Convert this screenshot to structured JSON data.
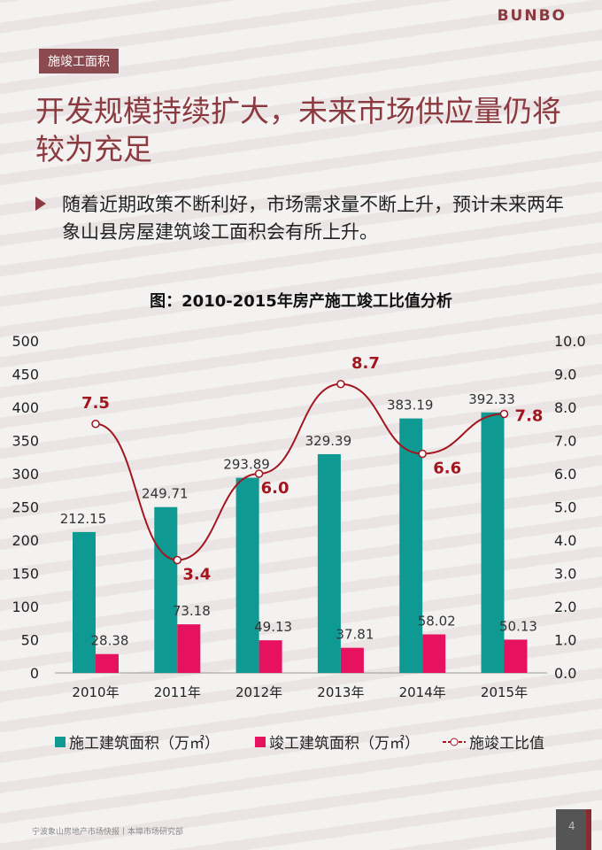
{
  "header": {
    "logo": "BUNBO",
    "tag": "施竣工面积"
  },
  "title": "开发规模持续扩大，未来市场供应量仍将较为充足",
  "bullet": "随着近期政策不断利好，市场需求量不断上升，预计未来两年象山县房屋建筑竣工面积会有所上升。",
  "footer": {
    "source": "宁波象山房地产市场快报丨本埠市场研究部",
    "page": "4"
  },
  "chart_data": {
    "type": "bar+line",
    "title": "图：2010-2015年房产施工竣工比值分析",
    "categories": [
      "2010年",
      "2011年",
      "2012年",
      "2013年",
      "2014年",
      "2015年"
    ],
    "series": [
      {
        "name": "施工建筑面积（万㎡）",
        "type": "bar",
        "axis": "left",
        "color": "#0e9a93",
        "values": [
          212.15,
          249.71,
          293.89,
          329.39,
          383.19,
          392.33
        ],
        "labels": [
          "212.15",
          "249.71",
          "293.89",
          "329.39",
          "383.19",
          "392.33"
        ]
      },
      {
        "name": "竣工建筑面积（万㎡）",
        "type": "bar",
        "axis": "left",
        "color": "#e6125f",
        "values": [
          28.38,
          73.18,
          49.13,
          37.81,
          58.02,
          50.13
        ],
        "labels": [
          "28.38",
          "73.18",
          "49.13",
          "37.81",
          "58.02",
          "50.13"
        ]
      },
      {
        "name": "施竣工比值",
        "type": "line",
        "axis": "right",
        "color": "#a3161f",
        "values": [
          7.5,
          3.4,
          6.0,
          8.7,
          6.6,
          7.8
        ],
        "labels": [
          "7.5",
          "3.4",
          "6.0",
          "8.7",
          "6.6",
          "7.8"
        ]
      }
    ],
    "ylim_left": [
      0,
      500
    ],
    "yticks_left": [
      "0",
      "50",
      "100",
      "150",
      "200",
      "250",
      "300",
      "350",
      "400",
      "450",
      "500"
    ],
    "ylim_right": [
      0,
      10
    ],
    "yticks_right": [
      "0.0",
      "1.0",
      "2.0",
      "3.0",
      "4.0",
      "5.0",
      "6.0",
      "7.0",
      "8.0",
      "9.0",
      "10.0"
    ],
    "legend": "bottom",
    "grid": false
  }
}
